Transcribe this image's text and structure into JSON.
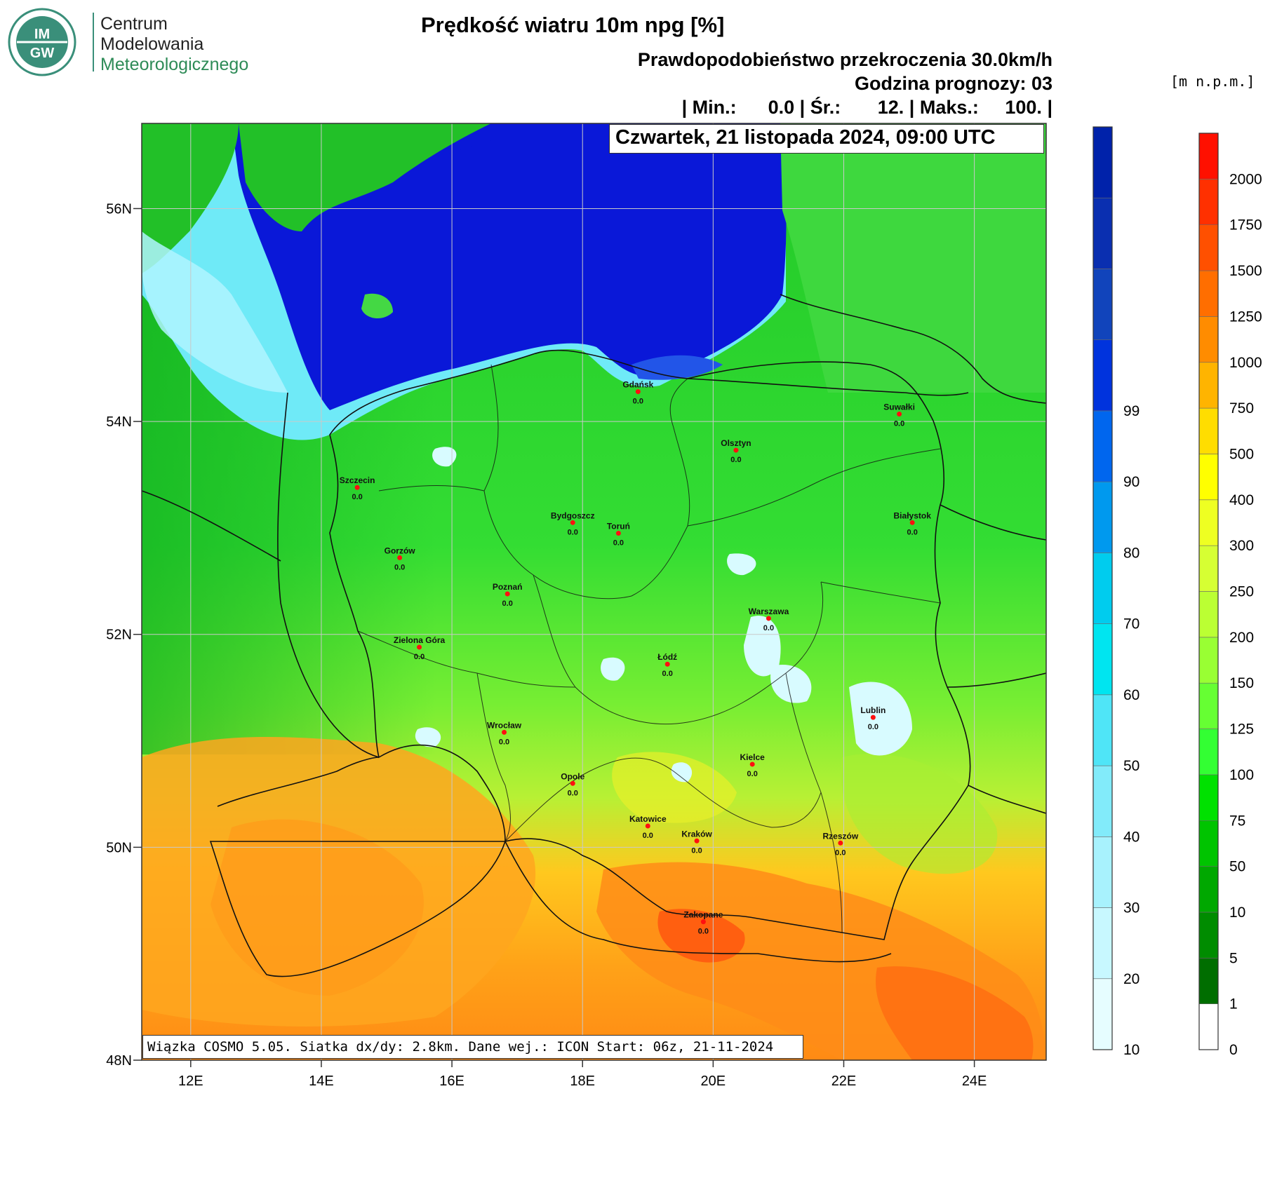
{
  "logo": {
    "emblem": "IM GW",
    "line1": "Centrum",
    "line2": "Modelowania",
    "line3": "Meteorologicznego",
    "emblem_color": "#3a8f7a"
  },
  "header": {
    "title": "Prędkość wiatru 10m npg [%]",
    "subtitle": "Prawdopodobieństwo przekroczenia 30.0km/h",
    "forecast_hour": "Godzina prognozy: 03",
    "stats": "| Min.:      0.0 | Śr.:       12. | Maks.:     100. |",
    "date_box": "Czwartek, 21 listopada 2024, 09:00 UTC"
  },
  "footer_box": "Wiązka COSMO 5.05. Siatka dx/dy: 2.8km. Dane wej.: ICON Start: 06z, 21-11-2024",
  "map": {
    "lat_labels": [
      {
        "label": "56N",
        "lat": 56
      },
      {
        "label": "54N",
        "lat": 54
      },
      {
        "label": "52N",
        "lat": 52
      },
      {
        "label": "50N",
        "lat": 50
      },
      {
        "label": "48N",
        "lat": 48
      }
    ],
    "lon_labels": [
      {
        "label": "12E",
        "lon": 12
      },
      {
        "label": "14E",
        "lon": 14
      },
      {
        "label": "16E",
        "lon": 16
      },
      {
        "label": "18E",
        "lon": 18
      },
      {
        "label": "20E",
        "lon": 20
      },
      {
        "label": "22E",
        "lon": 22
      },
      {
        "label": "24E",
        "lon": 24
      }
    ],
    "lon_range": [
      11.25,
      25.1
    ],
    "lat_range": [
      48.0,
      56.8
    ],
    "cities": [
      {
        "name": "Gdańsk",
        "value": "0.0",
        "lon": 18.85,
        "lat": 54.28
      },
      {
        "name": "Suwałki",
        "value": "0.0",
        "lon": 22.85,
        "lat": 54.07
      },
      {
        "name": "Olsztyn",
        "value": "0.0",
        "lon": 20.35,
        "lat": 53.73
      },
      {
        "name": "Szczecin",
        "value": "0.0",
        "lon": 14.55,
        "lat": 53.38
      },
      {
        "name": "Białystok",
        "value": "0.0",
        "lon": 23.05,
        "lat": 53.05
      },
      {
        "name": "Bydgoszcz",
        "value": "0.0",
        "lon": 17.85,
        "lat": 53.05
      },
      {
        "name": "Toruń",
        "value": "0.0",
        "lon": 18.55,
        "lat": 52.95
      },
      {
        "name": "Gorzów",
        "value": "0.0",
        "lon": 15.2,
        "lat": 52.72
      },
      {
        "name": "Poznań",
        "value": "0.0",
        "lon": 16.85,
        "lat": 52.38
      },
      {
        "name": "Warszawa",
        "value": "0.0",
        "lon": 20.85,
        "lat": 52.15
      },
      {
        "name": "Zielona Góra",
        "value": "0.0",
        "lon": 15.5,
        "lat": 51.88
      },
      {
        "name": "Łódź",
        "value": "0.0",
        "lon": 19.3,
        "lat": 51.72
      },
      {
        "name": "Lublin",
        "value": "0.0",
        "lon": 22.45,
        "lat": 51.22
      },
      {
        "name": "Wrocław",
        "value": "0.0",
        "lon": 16.8,
        "lat": 51.08
      },
      {
        "name": "Kielce",
        "value": "0.0",
        "lon": 20.6,
        "lat": 50.78
      },
      {
        "name": "Opole",
        "value": "0.0",
        "lon": 17.85,
        "lat": 50.6
      },
      {
        "name": "Katowice",
        "value": "0.0",
        "lon": 19.0,
        "lat": 50.2
      },
      {
        "name": "Kraków",
        "value": "0.0",
        "lon": 19.75,
        "lat": 50.06
      },
      {
        "name": "Rzeszów",
        "value": "0.0",
        "lon": 21.95,
        "lat": 50.04
      },
      {
        "name": "Zakopane",
        "value": "0.0",
        "lon": 19.85,
        "lat": 49.3
      }
    ]
  },
  "legend_prob": {
    "colors": [
      "#e6fdff",
      "#c8f8ff",
      "#a8f2fd",
      "#82ebfa",
      "#4fe5f7",
      "#00e5f0",
      "#00ccee",
      "#0099ee",
      "#0066ee",
      "#0033dd",
      "#1144bb",
      "#0a2fb0",
      "#0022aa"
    ],
    "labels": [
      "10",
      "20",
      "30",
      "40",
      "50",
      "60",
      "70",
      "80",
      "90",
      "99"
    ]
  },
  "legend_elev": {
    "unit": "[m n.p.m.]",
    "colors": [
      "#ffffff",
      "#006e00",
      "#008c00",
      "#00a800",
      "#00c400",
      "#00e100",
      "#33ff33",
      "#66ff33",
      "#99ff33",
      "#bbff33",
      "#d6ff33",
      "#eeff22",
      "#ffff00",
      "#ffdd00",
      "#ffb400",
      "#ff8c00",
      "#ff6e00",
      "#ff5000",
      "#ff3000",
      "#ff1000"
    ],
    "labels": [
      "0",
      "1",
      "5",
      "10",
      "50",
      "75",
      "100",
      "125",
      "150",
      "200",
      "250",
      "300",
      "400",
      "500",
      "750",
      "1000",
      "1250",
      "1500",
      "1750",
      "2000"
    ]
  }
}
